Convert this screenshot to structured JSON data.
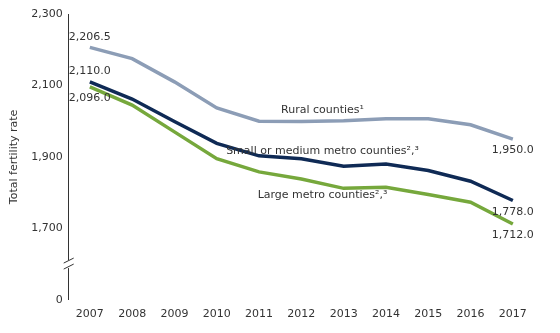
{
  "chart_data": {
    "type": "line",
    "ylabel": "Total fertility rate",
    "categories": [
      "2007",
      "2008",
      "2009",
      "2010",
      "2011",
      "2012",
      "2013",
      "2014",
      "2015",
      "2016",
      "2017"
    ],
    "ylim": [
      0,
      2300
    ],
    "yticks": [
      0,
      {
        "value": 1700,
        "label": "1,700"
      },
      {
        "value": 1900,
        "label": "1,900"
      },
      {
        "value": 2100,
        "label": "2,100"
      },
      {
        "value": 2300,
        "label": "2,300"
      }
    ],
    "grid": false,
    "data_labels": true,
    "series": [
      {
        "name": "Rural counties¹",
        "color": "#8c9db6",
        "values": [
          2206.5,
          2175,
          2110,
          2037,
          2000,
          1999,
          2001,
          2007,
          2007,
          1990,
          1950.0
        ],
        "value_labels": [
          "2,206.5",
          null,
          null,
          null,
          null,
          null,
          null,
          null,
          null,
          null,
          "1,950.0"
        ]
      },
      {
        "name": "Small or medium metro counties²,³",
        "color": "#0f2a55",
        "values": [
          2110.0,
          2062,
          1999,
          1938,
          1903,
          1895,
          1874,
          1880,
          1862,
          1832,
          1778.0
        ],
        "value_labels": [
          "2,110.0",
          null,
          null,
          null,
          null,
          null,
          null,
          null,
          null,
          null,
          "1,778.0"
        ]
      },
      {
        "name": "Large metro counties²,³",
        "color": "#76a83c",
        "values": [
          2096.0,
          2045,
          1970,
          1895,
          1858,
          1838,
          1812,
          1815,
          1795,
          1773,
          1712.0
        ],
        "value_labels": [
          "2,096.0",
          null,
          null,
          null,
          null,
          null,
          null,
          null,
          null,
          null,
          "1,712.0"
        ]
      }
    ]
  }
}
